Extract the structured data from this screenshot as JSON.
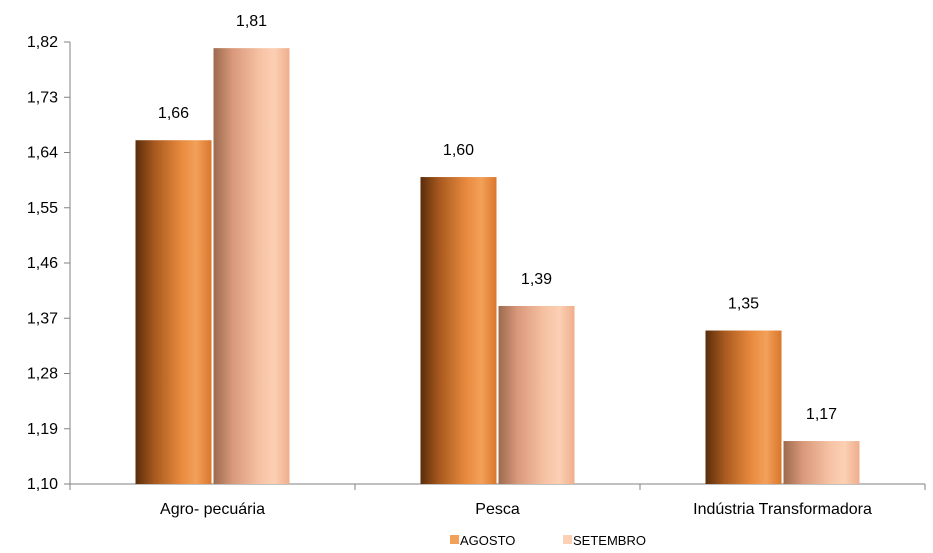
{
  "chart_data": {
    "type": "bar",
    "categories": [
      "Agro- pecuária",
      "Pesca",
      "Indústria Transformadora"
    ],
    "series": [
      {
        "name": "AGOSTO",
        "values": [
          1.66,
          1.6,
          1.35
        ],
        "labels": [
          "1,66",
          "1,60",
          "1,35"
        ]
      },
      {
        "name": "SETEMBRO",
        "values": [
          1.81,
          1.39,
          1.17
        ],
        "labels": [
          "1,81",
          "1,39",
          "1,17"
        ]
      }
    ],
    "ylim": [
      1.1,
      1.82
    ],
    "yticks": [
      1.1,
      1.19,
      1.28,
      1.37,
      1.46,
      1.55,
      1.64,
      1.73,
      1.82
    ],
    "ytick_labels": [
      "1,10",
      "1,19",
      "1,28",
      "1,37",
      "1,46",
      "1,55",
      "1,64",
      "1,73",
      "1,82"
    ],
    "grid": false,
    "legend": "bottom",
    "colors": {
      "AGOSTO": [
        "#5a2d0c",
        "#a8591f",
        "#e88a3e",
        "#f3a05a",
        "#d9772c"
      ],
      "SETEMBRO": [
        "#9c6a4e",
        "#d9987a",
        "#f6c1a3",
        "#fcd0b4",
        "#eeae8c"
      ],
      "axis": "#808080"
    },
    "title": "",
    "xlabel": "",
    "ylabel": ""
  }
}
